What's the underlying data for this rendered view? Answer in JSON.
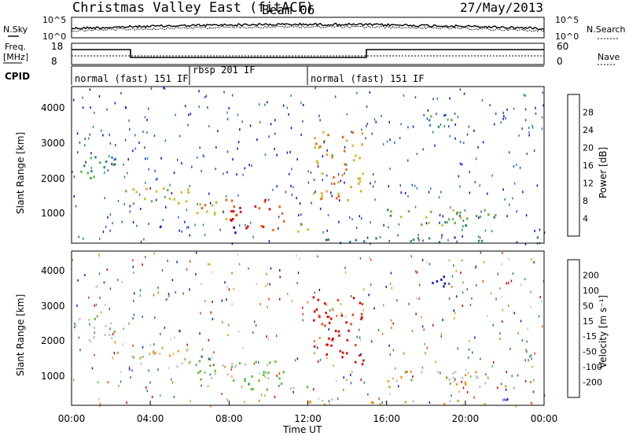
{
  "header": {
    "site": "Christmas Valley East (fitACF)",
    "beam": "Beam 06",
    "date": "27/May/2013"
  },
  "noise_panel": {
    "left_label": "N.Sky",
    "right_label": "N.Search",
    "left_ticks": [
      "10^5",
      "10^0"
    ],
    "right_ticks": [
      "10^5",
      "10^0"
    ]
  },
  "freq_panel": {
    "left_label_1": "Freq.",
    "left_label_2": "[MHz]",
    "right_label": "Nave",
    "left_ticks": [
      "18",
      "8"
    ],
    "right_ticks": [
      "60",
      "0"
    ]
  },
  "cpid": {
    "label": "CPID",
    "segments": [
      {
        "text": "normal (fast) 151 IF",
        "start_h": 0,
        "end_h": 6
      },
      {
        "text": "rbsp 201 IF",
        "start_h": 6,
        "end_h": 12
      },
      {
        "text": "normal (fast) 151 IF",
        "start_h": 12,
        "end_h": 24
      }
    ]
  },
  "chart_data": [
    {
      "type": "heatmap",
      "name": "power",
      "ylabel": "Slant Range [km]",
      "ylim": [
        200,
        4600
      ],
      "xlim_h": [
        0,
        24
      ],
      "yticks": [
        "4000",
        "3000",
        "2000",
        "1000"
      ],
      "colorbar": {
        "label": "Power [dB]",
        "ticks": [
          "28",
          "24",
          "20",
          "16",
          "12",
          "8",
          "4"
        ],
        "colors": [
          "#1010e0",
          "#3050c0",
          "#2e7fb0",
          "#3c8c5c",
          "#66b040",
          "#c8c020",
          "#f0a020",
          "#f06010",
          "#e00000"
        ]
      }
    },
    {
      "type": "heatmap",
      "name": "velocity",
      "ylabel": "Slant Range [km]",
      "ylim": [
        200,
        4600
      ],
      "xlim_h": [
        0,
        24
      ],
      "yticks": [
        "4000",
        "3000",
        "2000",
        "1000"
      ],
      "colorbar": {
        "label": "Velocity [m s⁻¹]",
        "ticks": [
          "200",
          "100",
          "50",
          "15",
          "-15",
          "-50",
          "-100",
          "-200"
        ],
        "colors": [
          "#1a1ad0",
          "#2f6fb0",
          "#2a9050",
          "#66c040",
          "#c8c8c8",
          "#f0a020",
          "#f07010",
          "#f04010",
          "#e00000"
        ]
      }
    }
  ],
  "x_axis": {
    "ticks": [
      "00:00",
      "04:00",
      "08:00",
      "12:00",
      "16:00",
      "20:00",
      "00:00"
    ],
    "label": "Time UT"
  }
}
